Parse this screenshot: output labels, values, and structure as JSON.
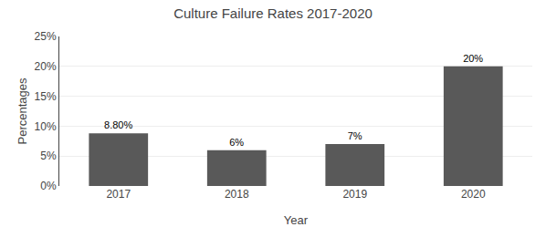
{
  "chart_data": {
    "type": "bar",
    "title": "Culture Failure Rates 2017-2020",
    "xlabel": "Year",
    "ylabel": "Percentages",
    "categories": [
      "2017",
      "2018",
      "2019",
      "2020"
    ],
    "values": [
      8.8,
      6.0,
      7.0,
      20.0
    ],
    "value_labels": [
      "8.80%",
      "6%",
      "7%",
      "20%"
    ],
    "data_labels": true,
    "color": "#595959",
    "ylim": [
      0,
      25
    ],
    "yticks": [
      {
        "value": 0,
        "label": "0%"
      },
      {
        "value": 5,
        "label": "5%"
      },
      {
        "value": 10,
        "label": "10%"
      },
      {
        "value": 15,
        "label": "15%"
      },
      {
        "value": 20,
        "label": "20%"
      },
      {
        "value": 25,
        "label": "25%"
      }
    ],
    "grid": true
  }
}
